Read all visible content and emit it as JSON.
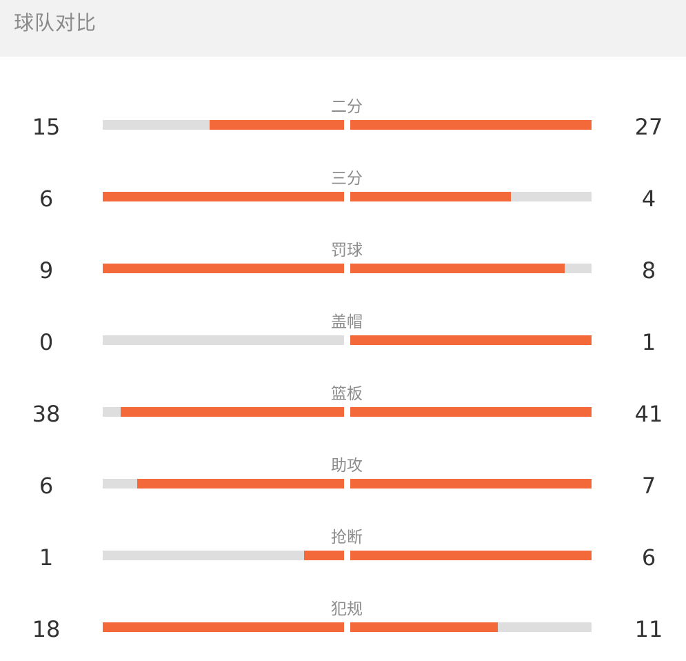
{
  "header": {
    "title": "球队对比"
  },
  "colors": {
    "bar_fill": "#f4693a",
    "bar_track": "#dedede",
    "header_bg": "#f2f2f2"
  },
  "stats": [
    {
      "label": "二分",
      "left": "15",
      "right": "27",
      "left_fill": 0.556,
      "right_fill": 1.0
    },
    {
      "label": "三分",
      "left": "6",
      "right": "4",
      "left_fill": 1.0,
      "right_fill": 0.667
    },
    {
      "label": "罚球",
      "left": "9",
      "right": "8",
      "left_fill": 1.0,
      "right_fill": 0.889
    },
    {
      "label": "盖帽",
      "left": "0",
      "right": "1",
      "left_fill": 0.0,
      "right_fill": 1.0
    },
    {
      "label": "篮板",
      "left": "38",
      "right": "41",
      "left_fill": 0.927,
      "right_fill": 1.0
    },
    {
      "label": "助攻",
      "left": "6",
      "right": "7",
      "left_fill": 0.857,
      "right_fill": 1.0
    },
    {
      "label": "抢断",
      "left": "1",
      "right": "6",
      "left_fill": 0.167,
      "right_fill": 1.0
    },
    {
      "label": "犯规",
      "left": "18",
      "right": "11",
      "left_fill": 1.0,
      "right_fill": 0.611
    }
  ]
}
